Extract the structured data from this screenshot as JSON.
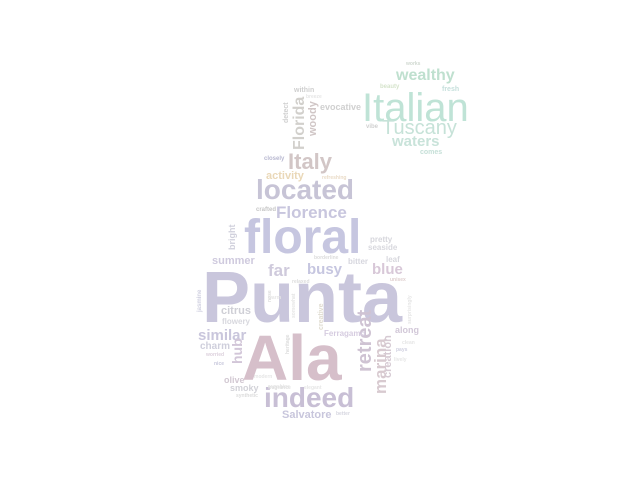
{
  "words": [
    {
      "text": "Punta",
      "color": "#c9c6dc"
    },
    {
      "text": "Ala",
      "color": "#d6bfca"
    },
    {
      "text": "floral",
      "color": "#c6c6e0"
    },
    {
      "text": "Italian",
      "color": "#bfe3d6"
    },
    {
      "text": "indeed",
      "color": "#c8bfd5"
    },
    {
      "text": "located",
      "color": "#c7c4d6"
    },
    {
      "text": "Tuscany",
      "color": "#c6e2d8"
    },
    {
      "text": "Florence",
      "color": "#c8c6de"
    },
    {
      "text": "Italy",
      "color": "#d2c6c6"
    },
    {
      "text": "wealthy",
      "color": "#bfe0cf"
    },
    {
      "text": "waters",
      "color": "#c9e3da"
    },
    {
      "text": "far",
      "color": "#cfcadc"
    },
    {
      "text": "busy",
      "color": "#c6c6e0"
    },
    {
      "text": "blue",
      "color": "#d8c8d8"
    },
    {
      "text": "retreat",
      "color": "#cfc3d3"
    },
    {
      "text": "marina",
      "color": "#d8cad0"
    },
    {
      "text": "Florida",
      "color": "#d2d0cc"
    },
    {
      "text": "similar",
      "color": "#c9c6dc"
    },
    {
      "text": "summer",
      "color": "#cfcade"
    },
    {
      "text": "activity",
      "color": "#ead8b8"
    },
    {
      "text": "citrus",
      "color": "#cfcfd6"
    },
    {
      "text": "hub",
      "color": "#d2c6d8"
    },
    {
      "text": "Salvatore",
      "color": "#c8c6dc"
    },
    {
      "text": "woody",
      "color": "#d0c6c6"
    },
    {
      "text": "evocative",
      "color": "#d0d0d0"
    },
    {
      "text": "creation",
      "color": "#d6cad3"
    },
    {
      "text": "charm",
      "color": "#cfcfdc"
    },
    {
      "text": "olive",
      "color": "#d2c8d2"
    },
    {
      "text": "smoky",
      "color": "#d2d2d8"
    },
    {
      "text": "bright",
      "color": "#d0d0dc"
    },
    {
      "text": "along",
      "color": "#d2c8d8"
    },
    {
      "text": "pretty",
      "color": "#d6d6dc"
    },
    {
      "text": "seaside",
      "color": "#d8d8de"
    },
    {
      "text": "bitter",
      "color": "#d6d6de"
    },
    {
      "text": "leaf",
      "color": "#d8d8de"
    },
    {
      "text": "flowery",
      "color": "#d8d8de"
    },
    {
      "text": "Ferragamo",
      "color": "#d6cce0"
    },
    {
      "text": "closely",
      "color": "#b8b8d0"
    },
    {
      "text": "crafted",
      "color": "#c6c6c6"
    },
    {
      "text": "within",
      "color": "#cfcfcf"
    },
    {
      "text": "detect",
      "color": "#cfcfcf"
    },
    {
      "text": "comes",
      "color": "#c6e0d8"
    },
    {
      "text": "vibe",
      "color": "#d0d0d0"
    },
    {
      "text": "beauty",
      "color": "#d6e4cc"
    },
    {
      "text": "fresh",
      "color": "#c6e0dc"
    },
    {
      "text": "works",
      "color": "#d0d8d0"
    },
    {
      "text": "jasmine",
      "color": "#d0d0e0"
    },
    {
      "text": "worried",
      "color": "#dcd0dc"
    },
    {
      "text": "nice",
      "color": "#c8c8dc"
    },
    {
      "text": "synthetic",
      "color": "#dcdcdc"
    },
    {
      "text": "better",
      "color": "#d6d6e0"
    },
    {
      "text": "pays",
      "color": "#d0d0e0"
    },
    {
      "text": "fragrance",
      "color": "#dcdcdc"
    },
    {
      "text": "heritage",
      "color": "#dcdcdc"
    },
    {
      "text": "creative",
      "color": "#e0dcd0"
    },
    {
      "text": "borderline",
      "color": "#dcdcdc"
    },
    {
      "text": "relaxed",
      "color": "#dcdcdc"
    },
    {
      "text": "unisex",
      "color": "#e0d0d0"
    },
    {
      "text": "surprisingly",
      "color": "#e6e6e6"
    },
    {
      "text": "nose",
      "color": "#dcdcdc"
    },
    {
      "text": "somewhat",
      "color": "#e6e6e6"
    },
    {
      "text": "sunshine",
      "color": "#e6e6e6"
    },
    {
      "text": "elegant",
      "color": "#e6e6e6"
    },
    {
      "text": "refreshing",
      "color": "#eadcc8"
    },
    {
      "text": "modern",
      "color": "#e6e6e6"
    },
    {
      "text": "clean",
      "color": "#e6e6e6"
    },
    {
      "text": "breeze",
      "color": "#e6e6e6"
    },
    {
      "text": "warm",
      "color": "#e6e6e6"
    },
    {
      "text": "lively",
      "color": "#e6e6e6"
    }
  ]
}
